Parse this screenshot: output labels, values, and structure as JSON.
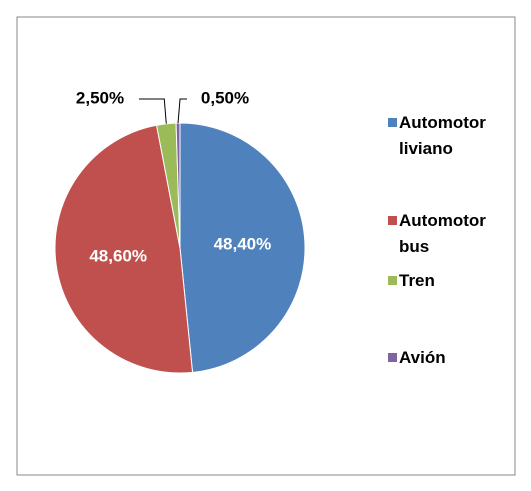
{
  "chart_data": {
    "type": "pie",
    "categories": [
      "Automotor liviano",
      "Automotor bus",
      "Tren",
      "Avión"
    ],
    "values": [
      48.4,
      48.6,
      2.5,
      0.5
    ],
    "value_labels": [
      "48,40%",
      "48,60%",
      "2,50%",
      "0,50%"
    ],
    "colors": [
      "#4f81bd",
      "#c0504d",
      "#9bbb59",
      "#8064a2"
    ],
    "legend": "right"
  }
}
